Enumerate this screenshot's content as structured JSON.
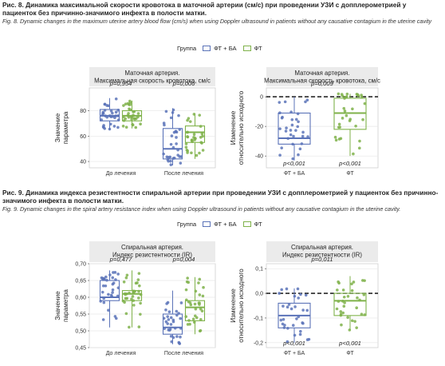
{
  "captions": {
    "fig8_main": "Рис. 8. Динамика максимальной скорости кровотока в маточной артерии (см/с) при проведении УЗИ с допплерометрией у пациенток без причинно-значимого инфекта в полости матки.",
    "fig8_en": "Fig. 8. Dynamic changes in the maximum uterine artery blood flow (cm/s) when using Doppler ultrasound in patients without any causative contagium in the uterine cavity",
    "fig9_main": "Рис. 9. Динамика индекса резистентности спиральной артерии при проведении УЗИ с допплерометрией у пациенток без причинно-значимого инфекта в полости матки.",
    "fig9_en": "Fig. 9. Dynamic changes in the spiral artery resistance index when using Doppler ultrasound in patients without any causative contagium in the uterine cavity."
  },
  "legend": {
    "title": "Группа",
    "items": [
      {
        "label": "ФТ + БА",
        "color": "#5b73b8"
      },
      {
        "label": "ФТ",
        "color": "#7fb24a"
      }
    ]
  },
  "colors": {
    "blue": "#5b73b8",
    "green": "#7fb24a",
    "panel_bg": "#ffffff",
    "grid": "#e6e6e6",
    "strip_bg": "#ebebeb"
  },
  "chart_data": [
    {
      "type": "box",
      "title": "Маточная артерия.\nМаксимальная скорость кровотока, см/с",
      "ylabel": "Значение\nпараметра",
      "categories": [
        "До лечения",
        "После лечения"
      ],
      "ylim": [
        35,
        98
      ],
      "yticks": [
        40,
        60,
        80
      ],
      "grid": true,
      "pvalues": [
        {
          "category": "До лечения",
          "text": "p=0,954"
        },
        {
          "category": "После лечения",
          "text": "p=0,006"
        }
      ],
      "series": [
        {
          "name": "ФТ + БА",
          "boxes": [
            {
              "q1": 72,
              "median": 76,
              "q3": 81,
              "low": 65,
              "high": 90
            },
            {
              "q1": 42,
              "median": 50,
              "q3": 66,
              "low": 37,
              "high": 82
            }
          ]
        },
        {
          "name": "ФТ",
          "boxes": [
            {
              "q1": 72,
              "median": 76,
              "q3": 80,
              "low": 66,
              "high": 88
            },
            {
              "q1": 55,
              "median": 63,
              "q3": 68,
              "low": 42,
              "high": 78
            }
          ]
        }
      ]
    },
    {
      "type": "box",
      "title": "Маточная артерия.\nМаксимальная скорость кровотока, см/с",
      "ylabel": "Изменение\nотносительно исходного",
      "categories": [
        "ФТ + БА",
        "ФТ"
      ],
      "ylim": [
        -48,
        6
      ],
      "yticks": [
        0,
        -20,
        -40
      ],
      "grid": true,
      "reference_line": 0,
      "pvalues_top": [
        {
          "text": "p=0,009"
        }
      ],
      "pvalues_bottom": [
        {
          "category": "ФТ + БА",
          "text": "p<0,001"
        },
        {
          "category": "ФТ",
          "text": "p<0,001"
        }
      ],
      "series": [
        {
          "name": "ФТ + БА",
          "boxes": [
            {
              "q1": -32,
              "median": -28,
              "q3": -11,
              "low": -43,
              "high": 0
            }
          ]
        },
        {
          "name": "ФТ",
          "boxes": [
            {
              "q1": -22,
              "median": -11,
              "q3": -1,
              "low": -40,
              "high": 2
            }
          ]
        }
      ]
    },
    {
      "type": "box",
      "title": "Спиральная артерия.\nИндекс резистентности (IR)",
      "ylabel": "Значение\nпараметра",
      "categories": [
        "До лечения",
        "После лечения"
      ],
      "ylim": [
        0.45,
        0.7
      ],
      "yticks": [
        "0,45",
        "0,50",
        "0,55",
        "0,60",
        "0,65",
        "0,70"
      ],
      "grid": true,
      "pvalues": [
        {
          "category": "До лечения",
          "text": "p=0,477"
        },
        {
          "category": "После лечения",
          "text": "p=0,004"
        }
      ],
      "series": [
        {
          "name": "ФТ + БА",
          "boxes": [
            {
              "q1": 0.59,
              "median": 0.6,
              "q3": 0.65,
              "low": 0.51,
              "high": 0.68
            },
            {
              "q1": 0.49,
              "median": 0.51,
              "q3": 0.55,
              "low": 0.46,
              "high": 0.62
            }
          ]
        },
        {
          "name": "ФТ",
          "boxes": [
            {
              "q1": 0.59,
              "median": 0.61,
              "q3": 0.62,
              "low": 0.51,
              "high": 0.68
            },
            {
              "q1": 0.53,
              "median": 0.57,
              "q3": 0.59,
              "low": 0.49,
              "high": 0.66
            }
          ]
        }
      ]
    },
    {
      "type": "box",
      "title": "Спиральная артерия.\nИндекс резистентности (IR)",
      "ylabel": "Изменение\nотносительно исходного",
      "categories": [
        "ФТ + БА",
        "ФТ"
      ],
      "ylim": [
        -0.22,
        0.12
      ],
      "yticks": [
        "0,1",
        "0,0",
        "-0,1",
        "-0,2"
      ],
      "grid": true,
      "reference_line": 0,
      "pvalues_top": [
        {
          "text": "p=0,011"
        }
      ],
      "pvalues_bottom": [
        {
          "category": "ФТ + БА",
          "text": "p<0,001"
        },
        {
          "category": "ФТ",
          "text": "p<0,001"
        }
      ],
      "series": [
        {
          "name": "ФТ + БА",
          "boxes": [
            {
              "q1": -0.14,
              "median": -0.09,
              "q3": -0.04,
              "low": -0.2,
              "high": 0.02
            }
          ]
        },
        {
          "name": "ФТ",
          "boxes": [
            {
              "q1": -0.09,
              "median": -0.03,
              "q3": 0.0,
              "low": -0.15,
              "high": 0.07
            }
          ]
        }
      ]
    }
  ]
}
